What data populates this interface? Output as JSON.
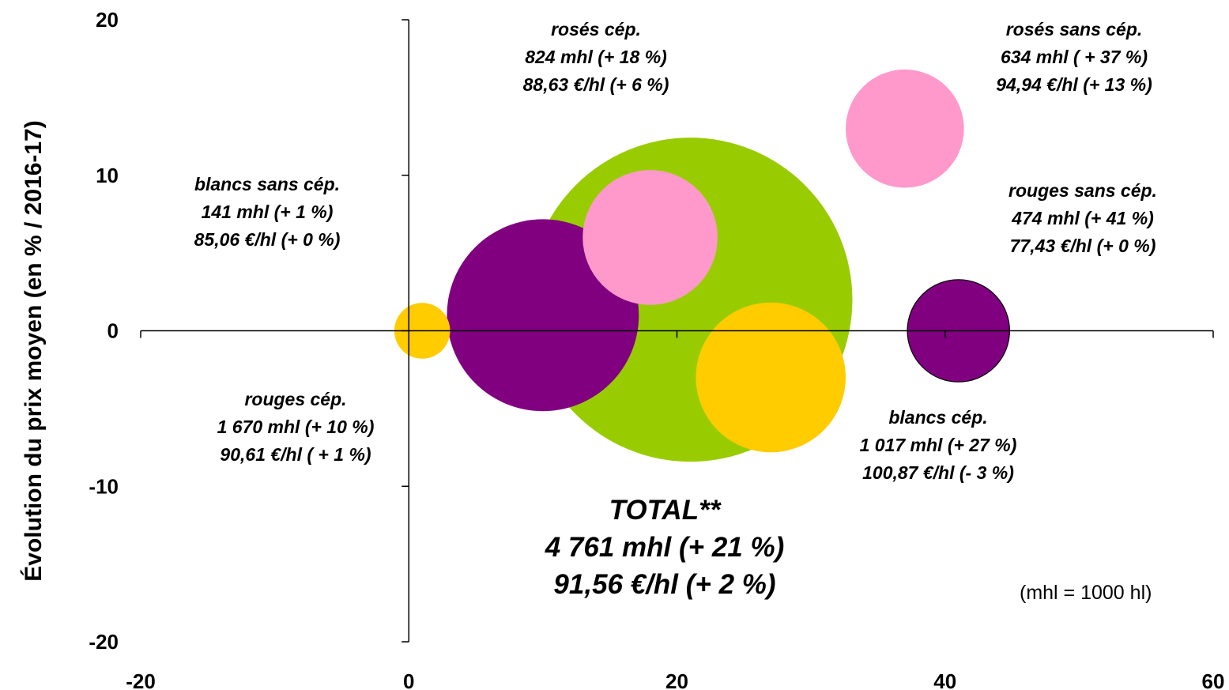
{
  "chart_data": {
    "type": "bubble",
    "title": "",
    "xlabel": "",
    "ylabel": "Évolution du prix moyen (en % / 2016-17)",
    "xlim": [
      -20,
      60
    ],
    "ylim": [
      -20,
      20
    ],
    "xticks": [
      "-20",
      "0",
      "20",
      "40",
      "60"
    ],
    "yticks": [
      "20",
      "10",
      "0",
      "-10",
      "-20"
    ],
    "note": "(mhl = 1000 hl)",
    "series": [
      {
        "id": "total",
        "x": 21,
        "y": 2,
        "volume_mhl": 4761,
        "color": "#99cc00",
        "label": [
          "TOTAL**",
          "4 761 mhl (+ 21 %)",
          "91,56 €/hl (+ 2 %)"
        ]
      },
      {
        "id": "rouges-cep",
        "x": 10,
        "y": 1,
        "volume_mhl": 1670,
        "color": "#800080",
        "label": [
          "rouges cép.",
          "1 670 mhl (+ 10 %)",
          "90,61 €/hl ( + 1 %)"
        ]
      },
      {
        "id": "roses-cep",
        "x": 18,
        "y": 6,
        "volume_mhl": 824,
        "color": "#ff99cc",
        "label": [
          "rosés cép.",
          "824 mhl (+ 18 %)",
          "88,63 €/hl (+ 6 %)"
        ]
      },
      {
        "id": "blancs-cep",
        "x": 27,
        "y": -3,
        "volume_mhl": 1017,
        "color": "#ffcc00",
        "label": [
          "blancs cép.",
          "1 017 mhl (+ 27 %)",
          "100,87 €/hl (- 3 %)"
        ]
      },
      {
        "id": "blancs-sans-cep",
        "x": 1,
        "y": 0,
        "volume_mhl": 141,
        "color": "#ffcc00",
        "label": [
          "blancs sans cép.",
          "141 mhl (+ 1 %)",
          "85,06 €/hl (+ 0 %)"
        ]
      },
      {
        "id": "roses-sans-cep",
        "x": 37,
        "y": 13,
        "volume_mhl": 634,
        "color": "#ff99cc",
        "label": [
          "rosés sans cép.",
          "634 mhl ( + 37 %)",
          "94,94 €/hl (+ 13 %)"
        ]
      },
      {
        "id": "rouges-sans-cep",
        "x": 41,
        "y": 0,
        "volume_mhl": 474,
        "color": "#800080",
        "outline": true,
        "label": [
          "rouges sans cép.",
          "474 mhl (+ 41 %)",
          "77,43 €/hl (+ 0 %)"
        ]
      }
    ]
  }
}
